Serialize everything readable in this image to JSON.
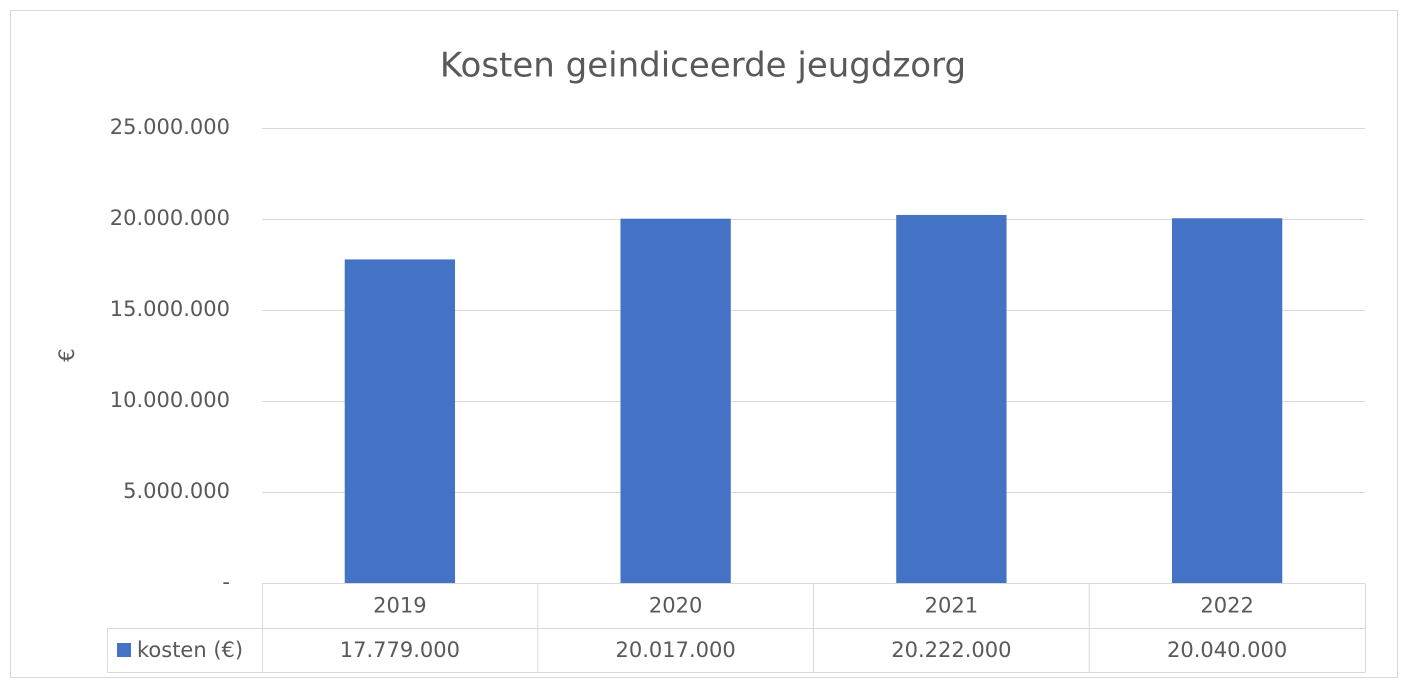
{
  "chart_data": {
    "type": "bar",
    "title": "Kosten geindiceerde jeugdzorg",
    "y_label": "€",
    "categories": [
      "2019",
      "2020",
      "2021",
      "2022"
    ],
    "series": [
      {
        "name": "kosten (€)",
        "color": "#4472c4",
        "values": [
          17779000,
          20017000,
          20222000,
          20040000
        ],
        "value_labels": [
          "17.779.000",
          "20.017.000",
          "20.222.000",
          "20.040.000"
        ]
      }
    ],
    "ylim": [
      0,
      25000000
    ],
    "yticks": [
      {
        "value": 0,
        "label": "-"
      },
      {
        "value": 5000000,
        "label": "5.000.000"
      },
      {
        "value": 10000000,
        "label": "10.000.000"
      },
      {
        "value": 15000000,
        "label": "15.000.000"
      },
      {
        "value": 20000000,
        "label": "20.000.000"
      },
      {
        "value": 25000000,
        "label": "25.000.000"
      }
    ],
    "grid": true
  }
}
